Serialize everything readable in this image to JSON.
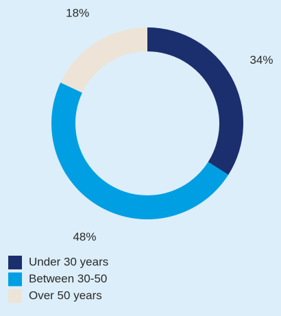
{
  "chart_data": {
    "type": "pie",
    "donut": true,
    "categories": [
      "Under 30 years",
      "Between 30-50",
      "Over 50 years"
    ],
    "values": [
      34,
      48,
      18
    ],
    "value_labels": [
      "34%",
      "48%",
      "18%"
    ],
    "colors": [
      "#1b2f6e",
      "#009fe3",
      "#ede4d7"
    ],
    "legend": "bottom-left"
  }
}
